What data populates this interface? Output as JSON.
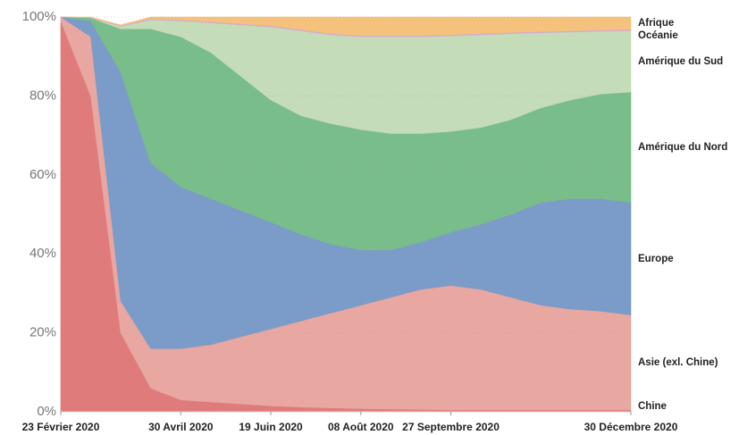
{
  "chart_data": {
    "type": "stacked_area_percent",
    "categories": [
      "23 Février 2020",
      null,
      null,
      null,
      "30 Avril 2020",
      null,
      null,
      "19 Juin 2020",
      null,
      null,
      "08 Août 2020",
      null,
      null,
      "27 Septembre 2020",
      null,
      null,
      null,
      null,
      null,
      "30 Décembre 2020"
    ],
    "series": [
      {
        "name": "Chine",
        "color": "#e07b7b",
        "values": [
          99,
          80,
          20,
          6,
          3,
          2.5,
          2,
          1.5,
          1.2,
          1,
          0.8,
          0.7,
          0.6,
          0.5,
          0.5,
          0.5,
          0.5,
          0.5,
          0.5,
          0.5
        ]
      },
      {
        "name": "Asie (exl. Chine)",
        "color": "#e8a7a1",
        "values": [
          1,
          15,
          8,
          10,
          13,
          14.5,
          17,
          19.5,
          21.8,
          24,
          26.2,
          28.3,
          30.4,
          31.5,
          30.5,
          28.5,
          26.5,
          25.5,
          25,
          24
        ]
      },
      {
        "name": "Europe",
        "color": "#7b9bc9",
        "values": [
          0,
          4,
          58,
          47,
          41,
          37,
          32,
          27,
          22,
          17.5,
          14,
          12,
          12,
          13.5,
          16.5,
          21,
          26,
          28,
          28.5,
          28.5
        ]
      },
      {
        "name": "Amérique du Nord",
        "color": "#79bd8a",
        "values": [
          0,
          0.8,
          11,
          34,
          38,
          37,
          34,
          31,
          30,
          30.5,
          30.5,
          29.5,
          27.5,
          25.5,
          24.5,
          24,
          24,
          25,
          26.5,
          28
        ]
      },
      {
        "name": "Amérique du Sud",
        "color": "#c4dcb8",
        "values": [
          0,
          0,
          0.6,
          2.3,
          4,
          7.5,
          13,
          18.5,
          21.5,
          22.5,
          23.5,
          24.5,
          24.5,
          24.2,
          23.5,
          21.8,
          19,
          17.2,
          15.9,
          15.5
        ]
      },
      {
        "name": "Océanie",
        "color": "#d7a9d2",
        "values": [
          0,
          0.1,
          0.2,
          0.3,
          0.3,
          0.3,
          0.3,
          0.3,
          0.3,
          0.3,
          0.3,
          0.3,
          0.3,
          0.3,
          0.3,
          0.3,
          0.3,
          0.3,
          0.3,
          0.3
        ]
      },
      {
        "name": "Afrique",
        "color": "#f4c27c",
        "values": [
          0,
          0.1,
          0.2,
          0.4,
          0.7,
          1.2,
          1.7,
          2.2,
          3.2,
          4.2,
          4.7,
          4.7,
          4.7,
          4.5,
          4.2,
          3.9,
          3.7,
          3.5,
          3.3,
          3.2
        ]
      }
    ],
    "ylim": [
      0,
      100
    ],
    "yticks": [
      {
        "value": 0,
        "label": "0%"
      },
      {
        "value": 20,
        "label": "20%"
      },
      {
        "value": 40,
        "label": "40%"
      },
      {
        "value": 60,
        "label": "60%"
      },
      {
        "value": 80,
        "label": "80%"
      },
      {
        "value": 100,
        "label": "100%"
      }
    ],
    "grid": true
  }
}
